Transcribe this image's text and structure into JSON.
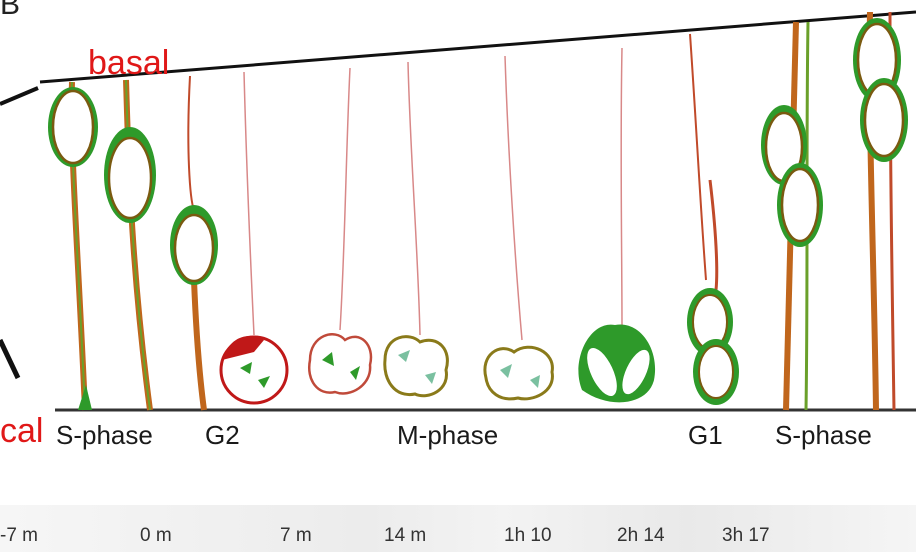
{
  "labels": {
    "panel": "B",
    "basal": "basal",
    "apical": "cal"
  },
  "phases": [
    "S-phase",
    "G2",
    "M-phase",
    "G1",
    "S-phase"
  ],
  "times": [
    "-7 m",
    "0 m",
    "7 m",
    "14 m",
    "1h 10",
    "2h 14",
    "3h 17"
  ],
  "colors": {
    "process": "#b03a14",
    "nucleus_outline": "#7a5a10",
    "cytoplasm": "#2e9a2a",
    "membrane_line": "#111111",
    "label_red": "#e01818"
  }
}
